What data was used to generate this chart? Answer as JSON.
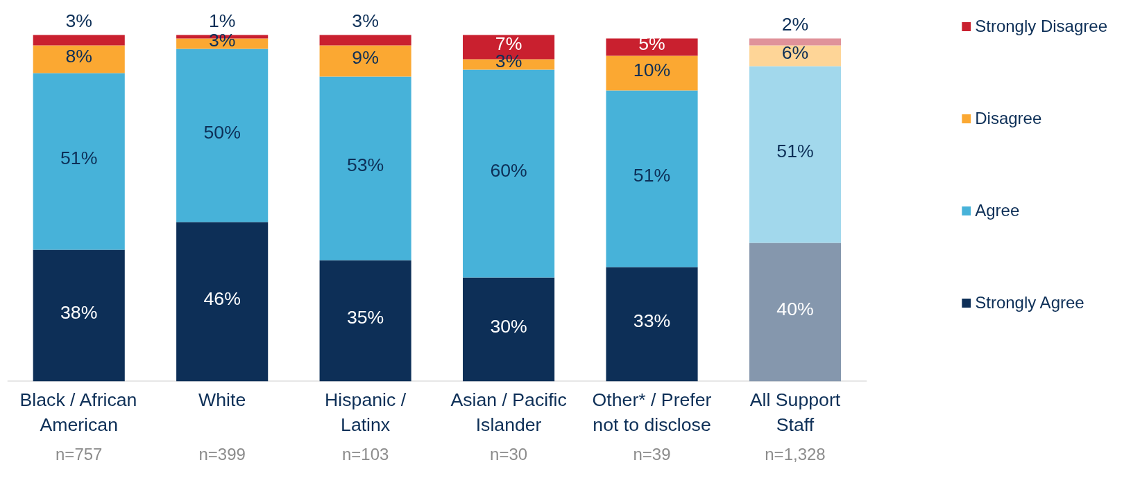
{
  "chart_data": {
    "type": "bar",
    "stacked": true,
    "legend": "right",
    "grid": false,
    "categories": [
      "Black / African American",
      "White",
      "Hispanic / Latinx",
      "Asian / Pacific Islander",
      "Other* / Prefer not to disclose",
      "All Support Staff"
    ],
    "series": [
      {
        "name": "Strongly Agree",
        "color": "#0d2f57",
        "colors": [
          null,
          null,
          null,
          null,
          null,
          "#8597ad"
        ],
        "values": [
          38,
          46,
          35,
          30,
          33,
          40
        ],
        "value_labels": [
          "38%",
          "46%",
          "35%",
          "30%",
          "33%",
          "40%"
        ]
      },
      {
        "name": "Agree",
        "color": "#47b2d9",
        "colors": [
          null,
          null,
          null,
          null,
          null,
          "#a2d8ec"
        ],
        "values": [
          51,
          50,
          53,
          60,
          51,
          51
        ],
        "value_labels": [
          "51%",
          "50%",
          "53%",
          "60%",
          "51%",
          "51%"
        ]
      },
      {
        "name": "Disagree",
        "color": "#fba832",
        "colors": [
          null,
          null,
          null,
          null,
          null,
          "#fed597"
        ],
        "values": [
          8,
          3,
          9,
          3,
          10,
          6
        ],
        "value_labels": [
          "8%",
          "3%",
          "9%",
          "3%",
          "10%",
          "6%"
        ]
      },
      {
        "name": "Strongly Disagree",
        "color": "#c9202f",
        "colors": [
          null,
          null,
          null,
          null,
          null,
          "#e0929a"
        ],
        "values": [
          3,
          1,
          3,
          7,
          5,
          2
        ],
        "value_labels": [
          "3%",
          "1%",
          "3%",
          "7%",
          "5%",
          "2%"
        ]
      }
    ],
    "annotations": [
      "n=757",
      "n=399",
      "n=103",
      "n=30",
      "n=39",
      "n=1,328"
    ]
  }
}
